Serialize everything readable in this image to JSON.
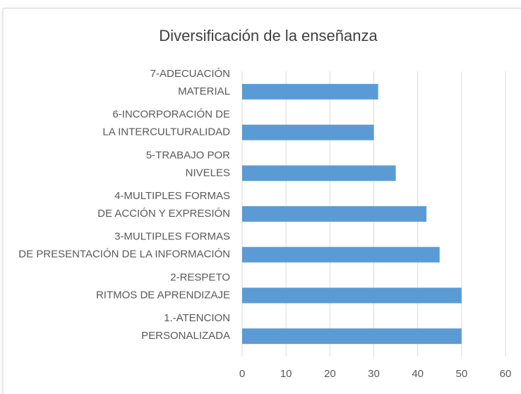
{
  "chart_data": {
    "type": "barh",
    "title": "Diversificación de la enseñanza",
    "categories": [
      [
        "1.-ATENCION",
        "PERSONALIZADA"
      ],
      [
        "2-RESPETO",
        "RITMOS DE APRENDIZAJE"
      ],
      [
        "3-MULTIPLES FORMAS",
        "DE PRESENTACIÓN DE LA INFORMACIÓN"
      ],
      [
        "4-MULTIPLES FORMAS",
        "DE ACCIÓN Y EXPRESIÓN"
      ],
      [
        "5-TRABAJO POR",
        "NIVELES"
      ],
      [
        "6-INCORPORACIÓN DE",
        "LA INTERCULTURALIDAD"
      ],
      [
        "7-ADECUACIÓN",
        "MATERIAL"
      ]
    ],
    "values": [
      50,
      50,
      45,
      42,
      35,
      30,
      31
    ],
    "color": "#5b9bd5",
    "xlim": [
      0,
      60
    ],
    "xticks": [
      0,
      10,
      20,
      30,
      40,
      50,
      60
    ],
    "grid": true
  }
}
